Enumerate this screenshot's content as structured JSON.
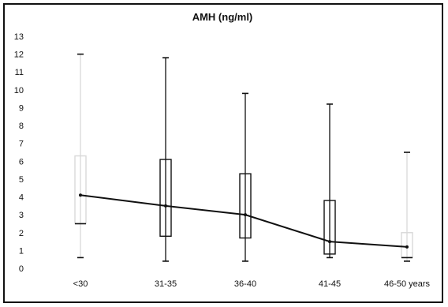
{
  "chart_data": {
    "type": "box",
    "title": "AMH (ng/ml)",
    "categories": [
      "<30",
      "31-35",
      "36-40",
      "41-45",
      "46-50 years"
    ],
    "ylim": [
      0,
      13
    ],
    "yticks": [
      0,
      1,
      2,
      3,
      4,
      5,
      6,
      7,
      8,
      9,
      10,
      11,
      12,
      13
    ],
    "grid": false,
    "boxes": [
      {
        "min": 0.6,
        "q1": 2.5,
        "median": 4.1,
        "q3": 6.3,
        "max": 12.0
      },
      {
        "min": 0.4,
        "q1": 1.8,
        "median": 3.5,
        "q3": 6.1,
        "max": 11.8
      },
      {
        "min": 0.4,
        "q1": 1.7,
        "median": 3.0,
        "q3": 5.3,
        "max": 9.8
      },
      {
        "min": 0.6,
        "q1": 0.8,
        "median": 1.5,
        "q3": 3.8,
        "max": 9.2
      },
      {
        "min": 0.4,
        "q1": 0.6,
        "median": 1.2,
        "q3": 2.0,
        "max": 6.5
      }
    ],
    "median_line": true,
    "colors": {
      "line": "#111111",
      "whisker_faint": "#d8d8d8",
      "box": "#111111"
    }
  }
}
